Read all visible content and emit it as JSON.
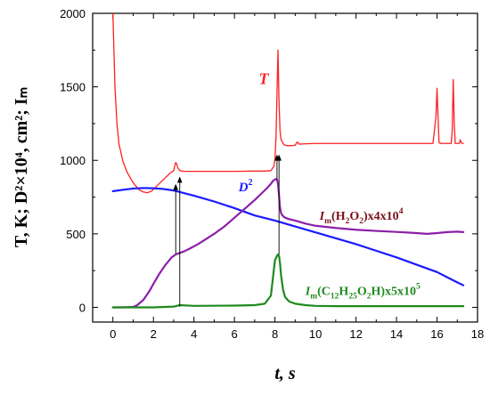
{
  "chart_data": {
    "type": "line",
    "xlabel": "t, s",
    "ylabel": "T, K; D²×10⁴, cm²; Iₘ",
    "xlim": [
      -1,
      18
    ],
    "ylim": [
      -100,
      2000
    ],
    "xticks": [
      0,
      2,
      4,
      6,
      8,
      10,
      12,
      14,
      16,
      18
    ],
    "yticks": [
      0,
      500,
      1000,
      1500,
      2000
    ],
    "grid": false,
    "colors": {
      "T": "#ff2020",
      "D2": "#1a1aff",
      "H2O2": "#8b1fa8",
      "C12": "#1f8a1f",
      "arrow": "#000000"
    },
    "series": [
      {
        "key": "T",
        "x": [
          0.0,
          0.05,
          0.1,
          0.2,
          0.3,
          0.5,
          0.7,
          0.9,
          1.1,
          1.3,
          1.5,
          1.7,
          1.9,
          2.2,
          2.5,
          2.8,
          3.0,
          3.05,
          3.1,
          3.15,
          3.2,
          3.3,
          3.5,
          3.7,
          4.0,
          5.0,
          6.0,
          7.0,
          7.5,
          7.8,
          7.95,
          8.0,
          8.05,
          8.1,
          8.15,
          8.2,
          8.25,
          8.3,
          8.45,
          8.6,
          8.8,
          9.0,
          9.1,
          9.2,
          9.4,
          10.0,
          12.0,
          14.0,
          15.0,
          15.8,
          15.95,
          16.0,
          16.05,
          16.1,
          16.2,
          16.5,
          16.7,
          16.75,
          16.8,
          16.85,
          16.9,
          17.0,
          17.1,
          17.15,
          17.2,
          17.3
        ],
        "y": [
          2000,
          1750,
          1500,
          1250,
          1110,
          990,
          920,
          870,
          830,
          800,
          785,
          780,
          790,
          830,
          870,
          910,
          930,
          960,
          985,
          975,
          950,
          930,
          925,
          925,
          925,
          925,
          925,
          927,
          927,
          930,
          960,
          1010,
          1150,
          1450,
          1750,
          1400,
          1200,
          1140,
          1105,
          1100,
          1100,
          1103,
          1125,
          1110,
          1112,
          1115,
          1115,
          1115,
          1115,
          1115,
          1300,
          1490,
          1300,
          1120,
          1115,
          1115,
          1115,
          1200,
          1550,
          1250,
          1115,
          1115,
          1115,
          1140,
          1118,
          1115
        ]
      },
      {
        "key": "D2",
        "x": [
          0,
          0.5,
          1.0,
          1.5,
          2.0,
          2.5,
          3.0,
          4.0,
          5.0,
          6.0,
          7.0,
          8.0,
          9.0,
          10.0,
          11.0,
          12.0,
          13.0,
          14.0,
          15.0,
          16.0,
          17.0,
          17.3
        ],
        "y": [
          790,
          800,
          808,
          812,
          810,
          805,
          795,
          760,
          720,
          675,
          625,
          590,
          550,
          510,
          470,
          430,
          385,
          340,
          290,
          240,
          170,
          150
        ]
      },
      {
        "key": "H2O2",
        "x": [
          0,
          0.5,
          1.0,
          1.2,
          1.5,
          1.8,
          2.0,
          2.3,
          2.6,
          2.9,
          3.1,
          3.2,
          3.3,
          3.5,
          3.8,
          4.2,
          4.6,
          5.0,
          5.5,
          6.0,
          6.5,
          7.0,
          7.3,
          7.6,
          7.8,
          7.9,
          8.0,
          8.05,
          8.1,
          8.15,
          8.2,
          8.25,
          8.3,
          8.4,
          8.5,
          8.7,
          9.0,
          9.5,
          10.0,
          11.0,
          12.0,
          13.0,
          14.0,
          15.0,
          15.5,
          16.0,
          16.5,
          17.0,
          17.3
        ],
        "y": [
          0,
          0,
          3,
          15,
          50,
          110,
          160,
          230,
          290,
          340,
          360,
          365,
          370,
          380,
          400,
          430,
          465,
          500,
          550,
          610,
          670,
          730,
          770,
          810,
          840,
          860,
          870,
          873,
          870,
          840,
          760,
          680,
          640,
          620,
          610,
          600,
          590,
          570,
          555,
          540,
          528,
          520,
          513,
          505,
          500,
          505,
          512,
          515,
          512
        ]
      },
      {
        "key": "C12",
        "x": [
          0,
          2.0,
          3.0,
          3.3,
          4.0,
          6.0,
          7.0,
          7.5,
          7.8,
          7.9,
          8.0,
          8.1,
          8.15,
          8.2,
          8.25,
          8.3,
          8.4,
          8.5,
          8.7,
          9.0,
          9.5,
          10.0,
          11.0,
          12.0,
          14.0,
          16.0,
          17.3
        ],
        "y": [
          0,
          0,
          5,
          15,
          10,
          12,
          15,
          25,
          80,
          200,
          320,
          350,
          360,
          350,
          300,
          220,
          120,
          70,
          40,
          25,
          15,
          10,
          8,
          8,
          8,
          8,
          8
        ]
      }
    ],
    "arrows": [
      {
        "x": 3.1,
        "y_from": 365,
        "y_to": 840
      },
      {
        "x": 3.3,
        "y_from": 5,
        "y_to": 890
      },
      {
        "x": 8.1,
        "y_from": 870,
        "y_to": 1040
      },
      {
        "x": 8.2,
        "y_from": 360,
        "y_to": 1040
      }
    ],
    "annotations": [
      {
        "key": "T",
        "parts": [
          {
            "t": "T",
            "s": "it"
          }
        ],
        "x": 7.2,
        "y": 1520,
        "size": 18,
        "color": "#ff2020"
      },
      {
        "key": "D2",
        "parts": [
          {
            "t": "D",
            "s": "it"
          },
          {
            "t": "2",
            "s": "sup"
          }
        ],
        "x": 6.2,
        "y": 790,
        "size": 15,
        "color": "#1a1aff"
      },
      {
        "key": "H2O2",
        "parts": [
          {
            "t": "I",
            "s": "it"
          },
          {
            "t": "m",
            "s": "sub"
          },
          {
            "t": "(H",
            "s": "n"
          },
          {
            "t": "2",
            "s": "sub"
          },
          {
            "t": "O",
            "s": "n"
          },
          {
            "t": "2",
            "s": "sub"
          },
          {
            "t": ")x4x10",
            "s": "n"
          },
          {
            "t": "4",
            "s": "sup"
          }
        ],
        "x": 10.2,
        "y": 595,
        "size": 14,
        "color": "#7a0f1a"
      },
      {
        "key": "C12",
        "parts": [
          {
            "t": "I",
            "s": "it"
          },
          {
            "t": "m",
            "s": "sub"
          },
          {
            "t": "(C",
            "s": "n"
          },
          {
            "t": "12",
            "s": "sub"
          },
          {
            "t": "H",
            "s": "n"
          },
          {
            "t": "25",
            "s": "sub"
          },
          {
            "t": "O",
            "s": "n"
          },
          {
            "t": "2",
            "s": "sub"
          },
          {
            "t": "H)x5x10",
            "s": "n"
          },
          {
            "t": "5",
            "s": "sup"
          }
        ],
        "x": 9.5,
        "y": 85,
        "size": 14,
        "color": "#1f8a1f"
      }
    ]
  }
}
